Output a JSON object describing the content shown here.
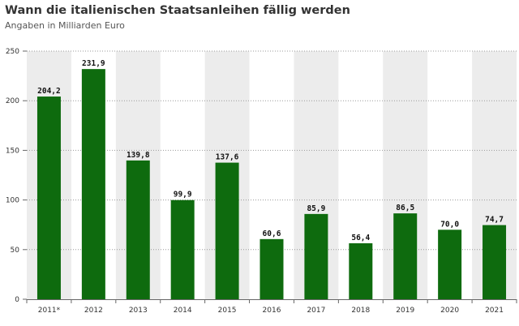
{
  "header": {
    "title": "Wann die italienischen Staatsanleihen fällig werden",
    "subtitle": "Angaben in Milliarden Euro"
  },
  "colors": {
    "bar": "#0e6b0e",
    "band": "#ececec",
    "grid": "#9a9a9a",
    "axis": "#666666"
  },
  "chart_data": {
    "type": "bar",
    "title": "Wann die italienischen Staatsanleihen fällig werden",
    "subtitle": "Angaben in Milliarden Euro",
    "categories": [
      "2011*",
      "2012",
      "2013",
      "2014",
      "2015",
      "2016",
      "2017",
      "2018",
      "2019",
      "2020",
      "2021"
    ],
    "values": [
      204.2,
      231.9,
      139.8,
      99.9,
      137.6,
      60.6,
      85.9,
      56.4,
      86.5,
      70.0,
      74.7
    ],
    "value_labels": [
      "204,2",
      "231,9",
      "139,8",
      "99,9",
      "137,6",
      "60,6",
      "85,9",
      "56,4",
      "86,5",
      "70,0",
      "74,7"
    ],
    "yticks": [
      0,
      50,
      100,
      150,
      200,
      250
    ],
    "ylim": [
      0,
      250
    ],
    "xlabel": "",
    "ylabel": "",
    "grid": true,
    "legend": "none"
  }
}
